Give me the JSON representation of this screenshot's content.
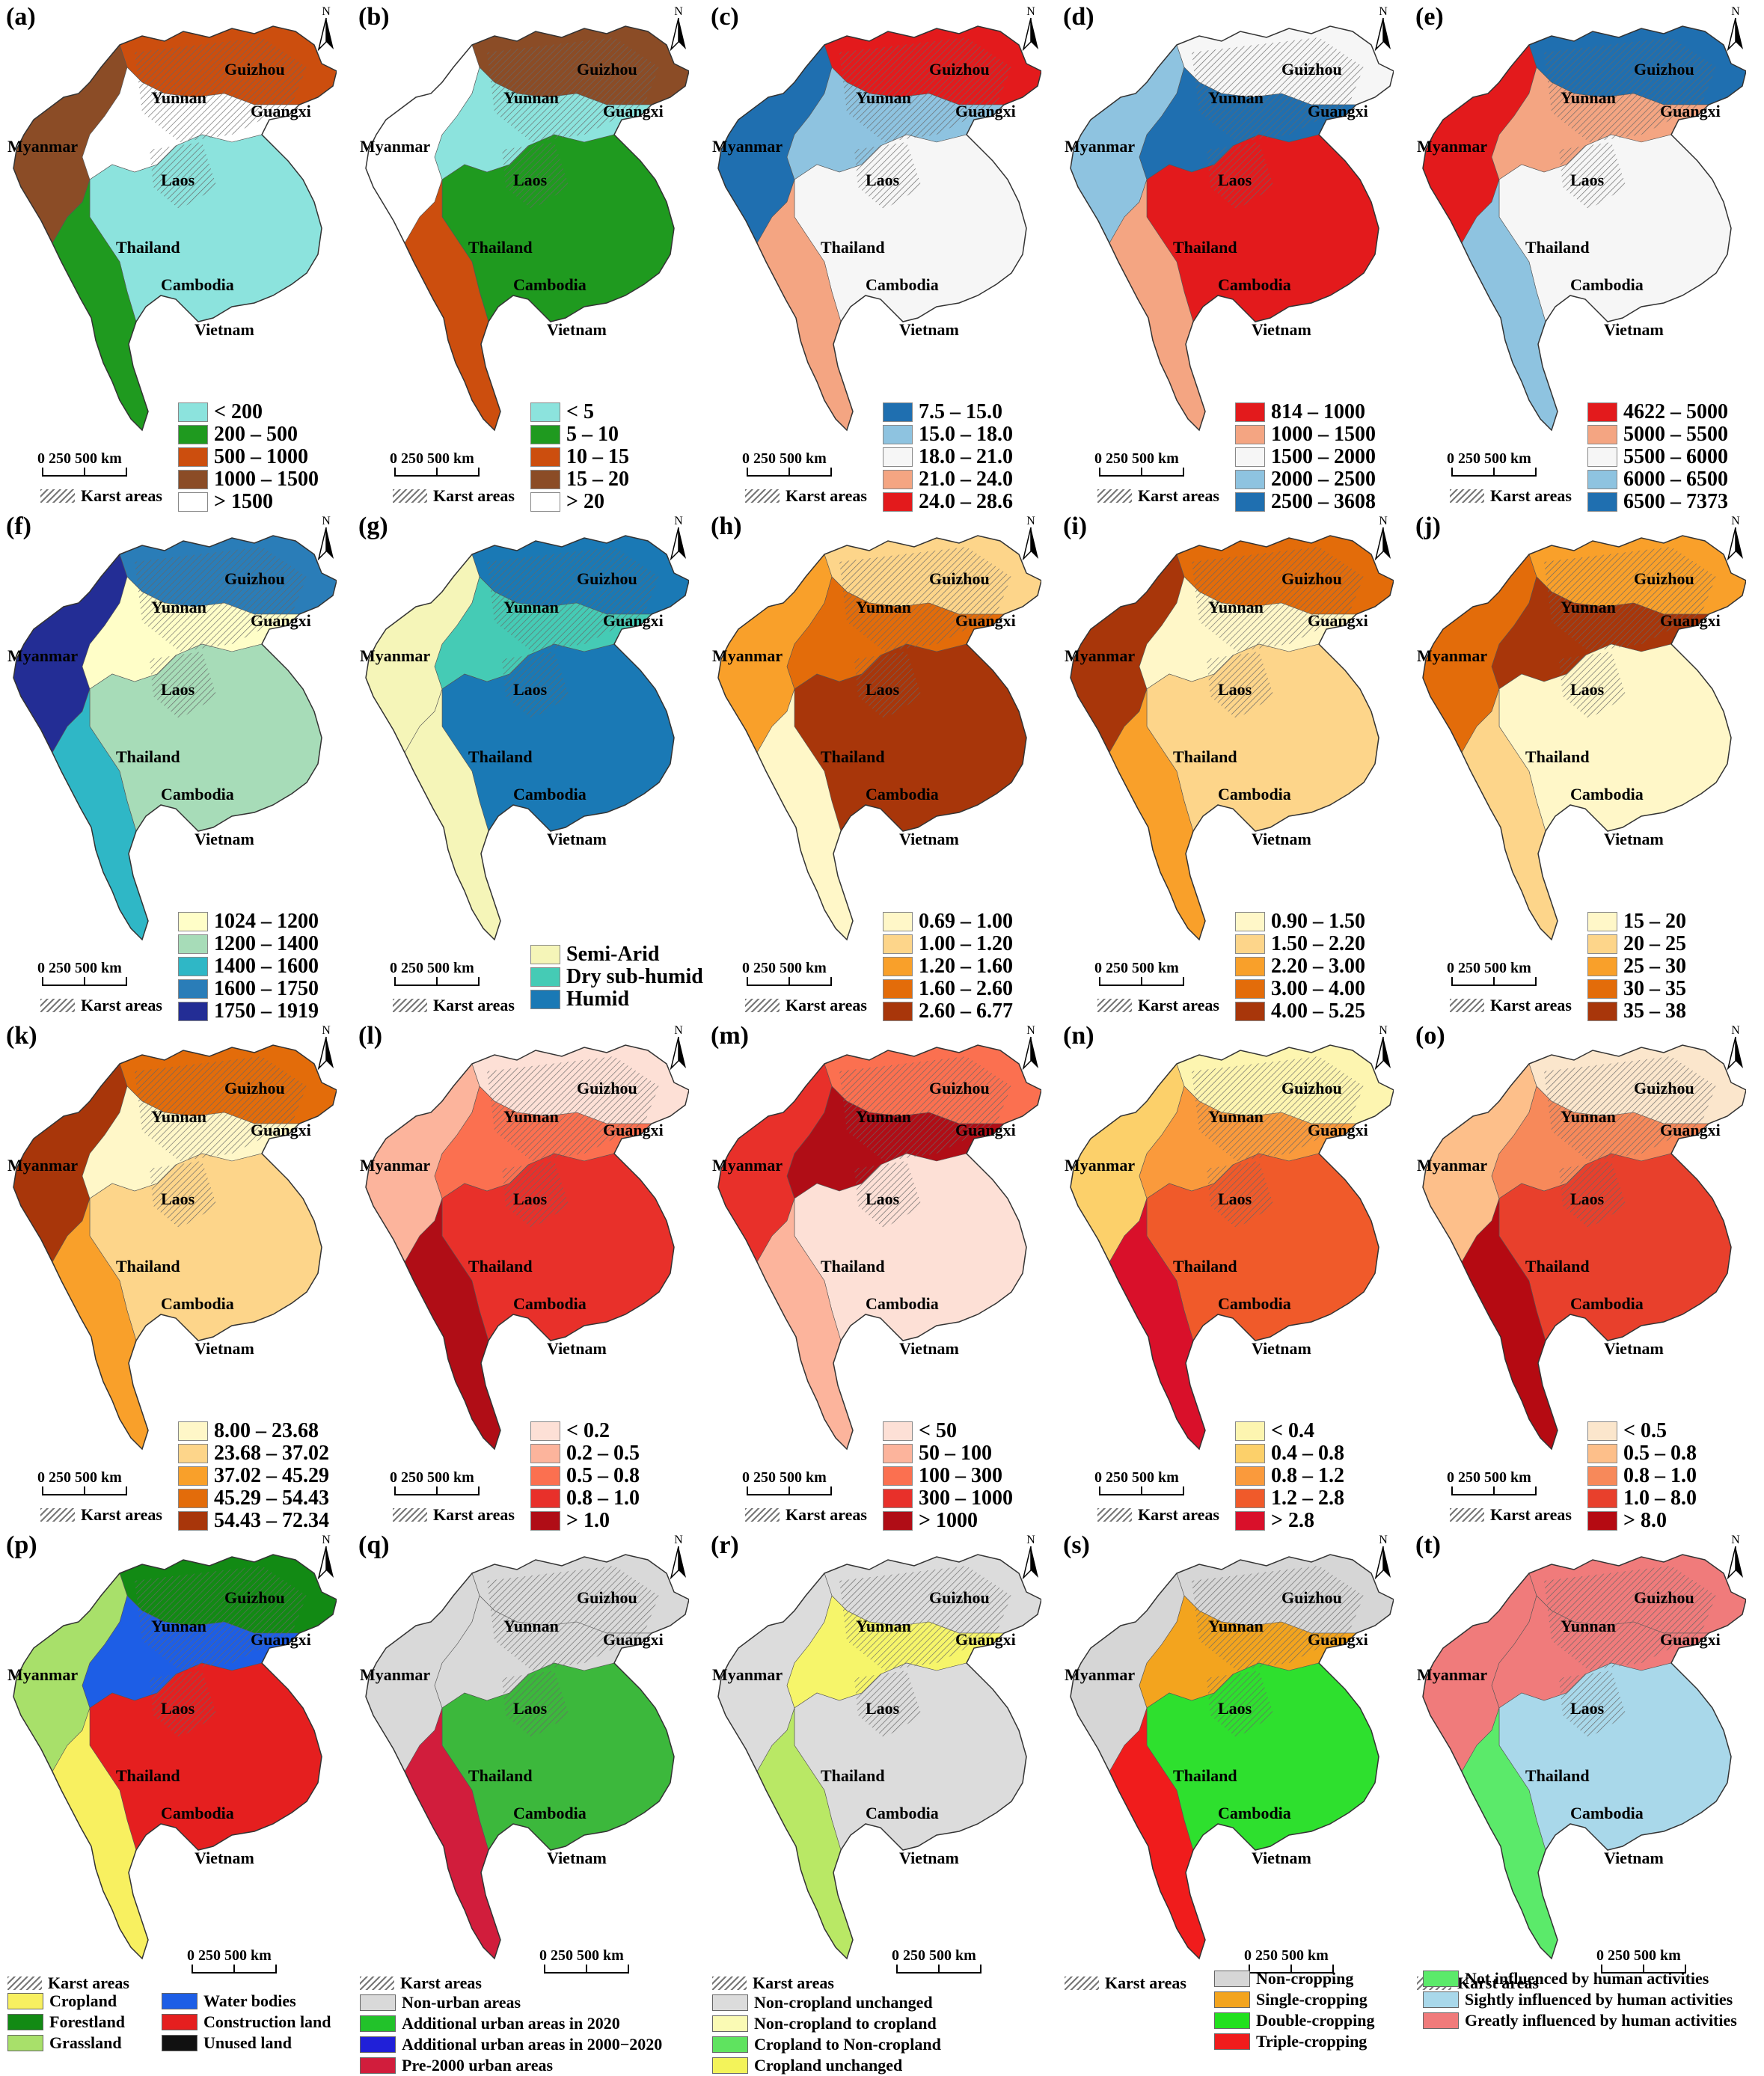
{
  "map_labels": [
    "Guizhou",
    "Yunnan",
    "Guangxi",
    "Myanmar",
    "Laos",
    "Thailand",
    "Cambodia",
    "Vietnam"
  ],
  "scale": {
    "nums": "0      250    500 km"
  },
  "karst_label": "Karst areas",
  "north_label": "N",
  "panels": [
    {
      "label": "(a)",
      "fills": [
        "#8ce3dd",
        "#1f9a1f",
        "#cc4e0e",
        "#8b4c26",
        "#ffffff"
      ],
      "main": 2,
      "legend": [
        {
          "t": "< 200",
          "c": "#8ce3dd"
        },
        {
          "t": "200 – 500",
          "c": "#1f9a1f"
        },
        {
          "t": "500 – 1000",
          "c": "#cc4e0e"
        },
        {
          "t": "1000 – 1500",
          "c": "#8b4c26"
        },
        {
          "t": "> 1500",
          "c": "#ffffff"
        }
      ]
    },
    {
      "label": "(b)",
      "fills": [
        "#8ce3dd",
        "#1f9a1f",
        "#cc4e0e",
        "#8b4c26",
        "#ffffff"
      ],
      "main": 3,
      "legend": [
        {
          "t": "< 5",
          "c": "#8ce3dd"
        },
        {
          "t": "5 – 10",
          "c": "#1f9a1f"
        },
        {
          "t": "10 – 15",
          "c": "#cc4e0e"
        },
        {
          "t": "15 – 20",
          "c": "#8b4c26"
        },
        {
          "t": "> 20",
          "c": "#ffffff"
        }
      ]
    },
    {
      "label": "(c)",
      "fills": [
        "#1f6fb0",
        "#8ec3e0",
        "#f6f6f6",
        "#f4a582",
        "#e31a1c"
      ],
      "main": 4,
      "legend": [
        {
          "t": "7.5 – 15.0",
          "c": "#1f6fb0"
        },
        {
          "t": "15.0 – 18.0",
          "c": "#8ec3e0"
        },
        {
          "t": "18.0 – 21.0",
          "c": "#f6f6f6"
        },
        {
          "t": "21.0 – 24.0",
          "c": "#f4a582"
        },
        {
          "t": "24.0 – 28.6",
          "c": "#e31a1c"
        }
      ]
    },
    {
      "label": "(d)",
      "fills": [
        "#e31a1c",
        "#f4a582",
        "#f6f6f6",
        "#8ec3e0",
        "#1f6fb0"
      ],
      "main": 2,
      "legend": [
        {
          "t": "814 – 1000",
          "c": "#e31a1c"
        },
        {
          "t": "1000 – 1500",
          "c": "#f4a582"
        },
        {
          "t": "1500 – 2000",
          "c": "#f6f6f6"
        },
        {
          "t": "2000 – 2500",
          "c": "#8ec3e0"
        },
        {
          "t": "2500 – 3608",
          "c": "#1f6fb0"
        }
      ]
    },
    {
      "label": "(e)",
      "fills": [
        "#e31a1c",
        "#f4a582",
        "#f6f6f6",
        "#8ec3e0",
        "#1f6fb0"
      ],
      "main": 4,
      "legend": [
        {
          "t": "4622 – 5000",
          "c": "#e31a1c"
        },
        {
          "t": "5000 – 5500",
          "c": "#f4a582"
        },
        {
          "t": "5500 – 6000",
          "c": "#f6f6f6"
        },
        {
          "t": "6000 – 6500",
          "c": "#8ec3e0"
        },
        {
          "t": "6500 – 7373",
          "c": "#1f6fb0"
        }
      ]
    },
    {
      "label": "(f)",
      "fills": [
        "#fffec8",
        "#a7dcb8",
        "#2fb7c6",
        "#2a7db8",
        "#232d95"
      ],
      "main": 3,
      "legend": [
        {
          "t": "1024 – 1200",
          "c": "#fffec8"
        },
        {
          "t": "1200 – 1400",
          "c": "#a7dcb8"
        },
        {
          "t": "1400 – 1600",
          "c": "#2fb7c6"
        },
        {
          "t": "1600 – 1750",
          "c": "#2a7db8"
        },
        {
          "t": "1750 – 1919",
          "c": "#232d95"
        }
      ]
    },
    {
      "label": "(g)",
      "fills": [
        "#f5f5b8",
        "#45cbb5",
        "#1a79b5"
      ],
      "main": 2,
      "legend": [
        {
          "t": "Semi-Arid",
          "c": "#f5f5b8"
        },
        {
          "t": "Dry sub-humid",
          "c": "#45cbb5"
        },
        {
          "t": "Humid",
          "c": "#1a79b5"
        }
      ]
    },
    {
      "label": "(h)",
      "fills": [
        "#fff7c8",
        "#fdd58a",
        "#f9a02a",
        "#e36c0a",
        "#a8360a"
      ],
      "main": 1,
      "legend": [
        {
          "t": "0.69 – 1.00",
          "c": "#fff7c8"
        },
        {
          "t": "1.00 – 1.20",
          "c": "#fdd58a"
        },
        {
          "t": "1.20 – 1.60",
          "c": "#f9a02a"
        },
        {
          "t": "1.60 – 2.60",
          "c": "#e36c0a"
        },
        {
          "t": "2.60 – 6.77",
          "c": "#a8360a"
        }
      ]
    },
    {
      "label": "(i)",
      "fills": [
        "#fff7c8",
        "#fdd58a",
        "#f9a02a",
        "#e36c0a",
        "#a8360a"
      ],
      "main": 3,
      "legend": [
        {
          "t": "0.90 – 1.50",
          "c": "#fff7c8"
        },
        {
          "t": "1.50 – 2.20",
          "c": "#fdd58a"
        },
        {
          "t": "2.20 – 3.00",
          "c": "#f9a02a"
        },
        {
          "t": "3.00 – 4.00",
          "c": "#e36c0a"
        },
        {
          "t": "4.00 – 5.25",
          "c": "#a8360a"
        }
      ]
    },
    {
      "label": "(j)",
      "fills": [
        "#fff7c8",
        "#fdd58a",
        "#f9a02a",
        "#e36c0a",
        "#a8360a"
      ],
      "main": 2,
      "legend": [
        {
          "t": "15 – 20",
          "c": "#fff7c8"
        },
        {
          "t": "20 – 25",
          "c": "#fdd58a"
        },
        {
          "t": "25 – 30",
          "c": "#f9a02a"
        },
        {
          "t": "30 – 35",
          "c": "#e36c0a"
        },
        {
          "t": "35 – 38",
          "c": "#a8360a"
        }
      ]
    },
    {
      "label": "(k)",
      "fills": [
        "#fff7c8",
        "#fdd58a",
        "#f9a02a",
        "#e36c0a",
        "#a8360a"
      ],
      "main": 3,
      "legend": [
        {
          "t": "8.00 – 23.68",
          "c": "#fff7c8"
        },
        {
          "t": "23.68 – 37.02",
          "c": "#fdd58a"
        },
        {
          "t": "37.02 – 45.29",
          "c": "#f9a02a"
        },
        {
          "t": "45.29 – 54.43",
          "c": "#e36c0a"
        },
        {
          "t": "54.43 – 72.34",
          "c": "#a8360a"
        }
      ]
    },
    {
      "label": "(l)",
      "fills": [
        "#fde0d6",
        "#fcb49c",
        "#fb7050",
        "#e8302a",
        "#b00d16"
      ],
      "main": 0,
      "legend": [
        {
          "t": "< 0.2",
          "c": "#fde0d6"
        },
        {
          "t": "0.2 – 0.5",
          "c": "#fcb49c"
        },
        {
          "t": "0.5 – 0.8",
          "c": "#fb7050"
        },
        {
          "t": "0.8 – 1.0",
          "c": "#e8302a"
        },
        {
          "t": "> 1.0",
          "c": "#b00d16"
        }
      ]
    },
    {
      "label": "(m)",
      "fills": [
        "#fde0d6",
        "#fcb49c",
        "#fb7050",
        "#e8302a",
        "#b00d16"
      ],
      "main": 2,
      "legend": [
        {
          "t": "< 50",
          "c": "#fde0d6"
        },
        {
          "t": "50 – 100",
          "c": "#fcb49c"
        },
        {
          "t": "100 – 300",
          "c": "#fb7050"
        },
        {
          "t": "300 – 1000",
          "c": "#e8302a"
        },
        {
          "t": "> 1000",
          "c": "#b00d16"
        }
      ]
    },
    {
      "label": "(n)",
      "fills": [
        "#fdf5b0",
        "#fcd06a",
        "#fa9a3c",
        "#f05a2a",
        "#d9102a"
      ],
      "main": 0,
      "legend": [
        {
          "t": "< 0.4",
          "c": "#fdf5b0"
        },
        {
          "t": "0.4 – 0.8",
          "c": "#fcd06a"
        },
        {
          "t": "0.8 – 1.2",
          "c": "#fa9a3c"
        },
        {
          "t": "1.2 – 2.8",
          "c": "#f05a2a"
        },
        {
          "t": "> 2.8",
          "c": "#d9102a"
        }
      ]
    },
    {
      "label": "(o)",
      "fills": [
        "#fbe6cc",
        "#fdbf8a",
        "#f7895a",
        "#e8402c",
        "#b50a12"
      ],
      "main": 0,
      "legend": [
        {
          "t": "< 0.5",
          "c": "#fbe6cc"
        },
        {
          "t": "0.5 – 0.8",
          "c": "#fdbf8a"
        },
        {
          "t": "0.8 – 1.0",
          "c": "#f7895a"
        },
        {
          "t": "1.0 – 8.0",
          "c": "#e8402c"
        },
        {
          "t": "> 8.0",
          "c": "#b50a12"
        }
      ]
    },
    {
      "label": "(p)",
      "fills": [
        "#f8f060",
        "#128a14",
        "#a8e06a",
        "#1d5ee6",
        "#e51f1f"
      ],
      "main": 1,
      "legend2": [
        {
          "t": "Cropland",
          "c": "#f8f060"
        },
        {
          "t": "Water bodies",
          "c": "#1d5ee6"
        },
        {
          "t": "Forestland",
          "c": "#128a14"
        },
        {
          "t": "Construction land",
          "c": "#e51f1f"
        },
        {
          "t": "Grassland",
          "c": "#a8e06a"
        },
        {
          "t": "Unused land",
          "c": "#111111"
        }
      ]
    },
    {
      "label": "(q)",
      "fills": [
        "#d9d9d9",
        "#d9d9d9",
        "#d9d9d9",
        "#3cb83c",
        "#d11d3c"
      ],
      "main": 0,
      "legend": [
        {
          "t": "Non-urban areas",
          "c": "#d9d9d9"
        },
        {
          "t": "Additional urban areas in 2020",
          "c": "#22c22a"
        },
        {
          "t": "Additional urban areas in 2000−2020",
          "c": "#2020d8"
        },
        {
          "t": "Pre-2000 urban areas",
          "c": "#d11d3c"
        }
      ]
    },
    {
      "label": "(r)",
      "fills": [
        "#dcdcdc",
        "#dcdcdc",
        "#f6f56a",
        "#dcdcdc",
        "#b9e865"
      ],
      "main": 0,
      "legend": [
        {
          "t": "Non-cropland unchanged",
          "c": "#dcdcdc"
        },
        {
          "t": "Non-cropland to cropland",
          "c": "#fafab4"
        },
        {
          "t": "Cropland to Non-cropland",
          "c": "#5fe35f"
        },
        {
          "t": "Cropland unchanged",
          "c": "#f3f35a"
        }
      ]
    },
    {
      "label": "(s)",
      "fills": [
        "#d6d6d6",
        "#d6d6d6",
        "#f3a41e",
        "#2ee02e",
        "#f01c1c"
      ],
      "main": 0,
      "legend": [
        {
          "t": "Non-cropping",
          "c": "#d6d6d6"
        },
        {
          "t": "Single-cropping",
          "c": "#f3a41e"
        },
        {
          "t": "Double-cropping",
          "c": "#22e01e"
        },
        {
          "t": "Triple-cropping",
          "c": "#f01c1c"
        }
      ]
    },
    {
      "label": "(t)",
      "fills": [
        "#f07b7b",
        "#f07b7b",
        "#f07b7b",
        "#a9d8ea",
        "#5bea6a"
      ],
      "main": 0,
      "legend": [
        {
          "t": "Not influenced by human activities",
          "c": "#5bea6a"
        },
        {
          "t": "Sightly influenced by human activities",
          "c": "#a9d8ea"
        },
        {
          "t": "Greatly influenced by human activities",
          "c": "#f07b7b"
        }
      ]
    }
  ]
}
